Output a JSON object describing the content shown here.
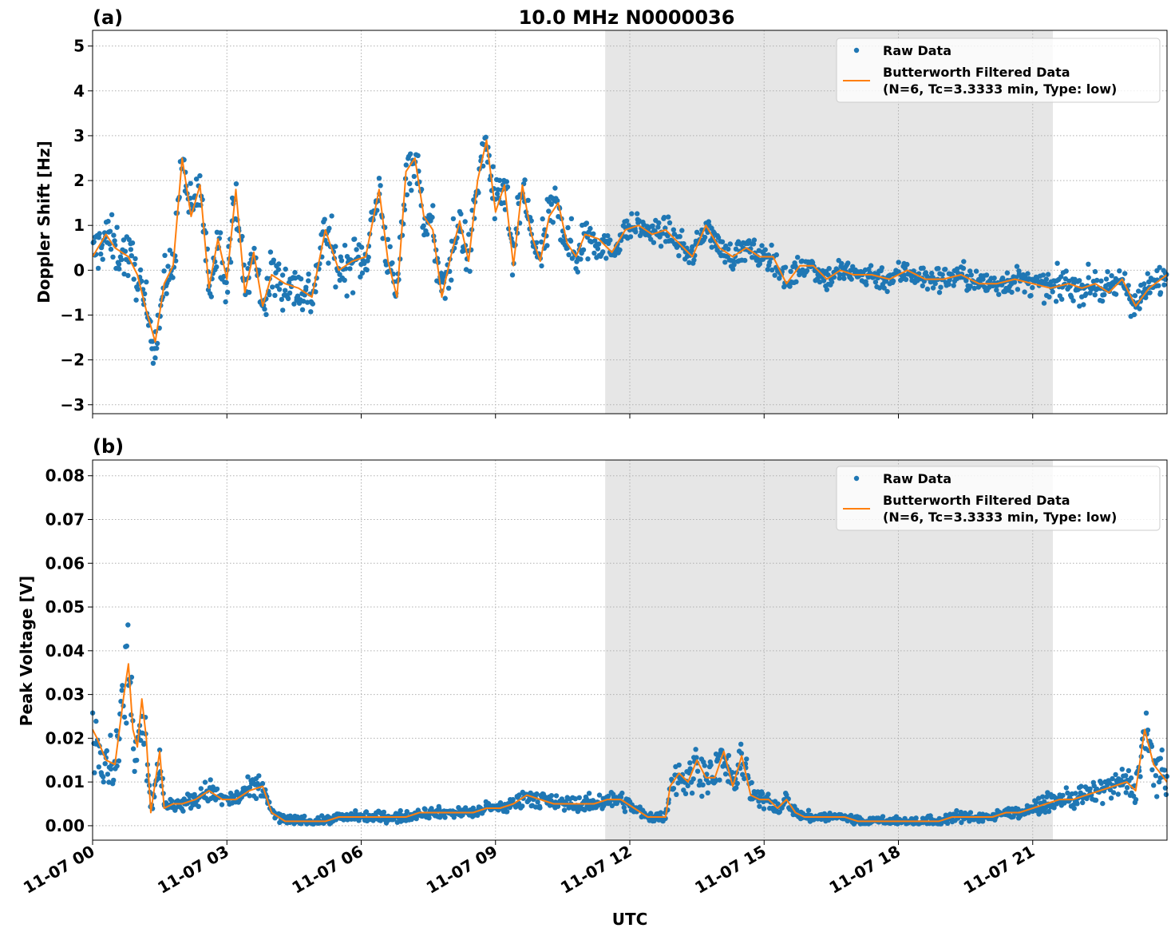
{
  "figure": {
    "title": "10.0 MHz N0000036",
    "xlabel": "UTC",
    "x_tick_labels": [
      "11-07 00",
      "11-07 03",
      "11-07 06",
      "11-07 09",
      "11-07 12",
      "11-07 15",
      "11-07 18",
      "11-07 21"
    ]
  },
  "chart_data": [
    {
      "type": "scatter",
      "panel_label": "(a)",
      "title": "10.0 MHz N0000036",
      "xlabel": "UTC",
      "ylabel": "Doppler Shift [Hz]",
      "x_unit": "hours since 11-07 00:00 UTC",
      "xlim": [
        0,
        24
      ],
      "ylim": [
        -3.2,
        5.35
      ],
      "y_ticks": [
        5,
        4,
        3,
        2,
        1,
        0,
        -1,
        -2,
        -3
      ],
      "y_tick_labels": [
        "5",
        "4",
        "3",
        "2",
        "1",
        "0",
        "−1",
        "−2",
        "−3"
      ],
      "shaded_span": [
        11.45,
        21.45
      ],
      "grid": true,
      "legend_position": "top-right",
      "legend": [
        "Raw Data",
        "Butterworth Filtered Data",
        "(N=6, Tc=3.3333 min, Type: low)"
      ],
      "series": [
        {
          "name": "Butterworth Filtered Data",
          "x": [
            0,
            0.3,
            0.5,
            0.8,
            1.0,
            1.2,
            1.4,
            1.6,
            1.8,
            2.0,
            2.2,
            2.4,
            2.6,
            2.8,
            3.0,
            3.2,
            3.4,
            3.6,
            3.8,
            4.0,
            4.3,
            4.6,
            4.9,
            5.2,
            5.5,
            5.8,
            6.1,
            6.4,
            6.6,
            6.8,
            7.0,
            7.2,
            7.4,
            7.6,
            7.8,
            8.0,
            8.2,
            8.4,
            8.6,
            8.8,
            9.0,
            9.2,
            9.4,
            9.6,
            9.8,
            10.0,
            10.2,
            10.4,
            10.6,
            10.8,
            11.0,
            11.3,
            11.6,
            11.9,
            12.2,
            12.5,
            12.8,
            13.1,
            13.4,
            13.7,
            14.0,
            14.3,
            14.6,
            14.9,
            15.2,
            15.5,
            15.8,
            16.1,
            16.4,
            16.7,
            17.0,
            17.4,
            17.8,
            18.2,
            18.6,
            19.0,
            19.4,
            19.8,
            20.2,
            20.6,
            21.0,
            21.4,
            21.8,
            22.1,
            22.4,
            22.7,
            23.0,
            23.3,
            23.6,
            24.0
          ],
          "values": [
            0.3,
            0.8,
            0.5,
            0.3,
            -0.1,
            -0.9,
            -1.6,
            -0.3,
            0.1,
            2.5,
            1.2,
            1.9,
            -0.4,
            0.7,
            -0.2,
            1.8,
            -0.5,
            0.4,
            -0.8,
            -0.1,
            -0.3,
            -0.4,
            -0.6,
            0.9,
            0.0,
            0.2,
            0.3,
            1.8,
            0.2,
            -0.6,
            2.2,
            2.5,
            1.2,
            0.9,
            -0.6,
            0.3,
            1.1,
            0.2,
            2.0,
            2.9,
            1.3,
            1.9,
            0.1,
            1.9,
            0.8,
            0.2,
            1.2,
            1.5,
            0.6,
            0.3,
            0.8,
            0.7,
            0.4,
            0.9,
            1.0,
            0.8,
            0.9,
            0.6,
            0.3,
            1.0,
            0.5,
            0.3,
            0.5,
            0.3,
            0.3,
            -0.3,
            0.1,
            0.1,
            -0.2,
            0.0,
            -0.1,
            -0.1,
            -0.2,
            0.0,
            -0.2,
            -0.2,
            -0.1,
            -0.3,
            -0.3,
            -0.2,
            -0.3,
            -0.4,
            -0.3,
            -0.4,
            -0.3,
            -0.5,
            -0.2,
            -0.8,
            -0.4,
            -0.1
          ]
        }
      ]
    },
    {
      "type": "scatter",
      "panel_label": "(b)",
      "xlabel": "UTC",
      "ylabel": "Peak Voltage [V]",
      "x_unit": "hours since 11-07 00:00 UTC",
      "xlim": [
        0,
        24
      ],
      "ylim": [
        -0.0033,
        0.0836
      ],
      "y_ticks": [
        0.08,
        0.07,
        0.06,
        0.05,
        0.04,
        0.03,
        0.02,
        0.01,
        0.0
      ],
      "y_tick_labels": [
        "0.08",
        "0.07",
        "0.06",
        "0.05",
        "0.04",
        "0.03",
        "0.02",
        "0.01",
        "0.00"
      ],
      "shaded_span": [
        11.45,
        21.45
      ],
      "grid": true,
      "legend_position": "top-right",
      "legend": [
        "Raw Data",
        "Butterworth Filtered Data",
        "(N=6, Tc=3.3333 min, Type: low)"
      ],
      "series": [
        {
          "name": "Butterworth Filtered Data",
          "x": [
            0,
            0.1,
            0.3,
            0.5,
            0.7,
            0.8,
            0.9,
            1.0,
            1.1,
            1.2,
            1.3,
            1.5,
            1.6,
            1.8,
            2.0,
            2.3,
            2.6,
            2.9,
            3.2,
            3.5,
            3.8,
            4.0,
            4.3,
            4.6,
            4.9,
            5.2,
            5.5,
            5.8,
            6.1,
            6.4,
            6.7,
            7.0,
            7.3,
            7.6,
            7.9,
            8.2,
            8.5,
            8.8,
            9.1,
            9.4,
            9.7,
            10.0,
            10.3,
            10.6,
            10.9,
            11.2,
            11.5,
            11.8,
            12.1,
            12.4,
            12.7,
            12.8,
            12.9,
            13.1,
            13.3,
            13.5,
            13.7,
            13.9,
            14.1,
            14.3,
            14.5,
            14.7,
            14.9,
            15.1,
            15.3,
            15.5,
            15.7,
            15.9,
            16.2,
            16.5,
            16.8,
            17.1,
            17.4,
            17.7,
            18.0,
            18.3,
            18.6,
            18.9,
            19.2,
            19.5,
            19.8,
            20.1,
            20.4,
            20.7,
            21.0,
            21.3,
            21.6,
            21.9,
            22.2,
            22.5,
            22.8,
            23.1,
            23.3,
            23.5,
            23.7,
            24.0
          ],
          "values": [
            0.022,
            0.02,
            0.015,
            0.014,
            0.03,
            0.037,
            0.022,
            0.018,
            0.029,
            0.02,
            0.003,
            0.017,
            0.004,
            0.005,
            0.005,
            0.006,
            0.008,
            0.006,
            0.006,
            0.008,
            0.009,
            0.003,
            0.001,
            0.001,
            0.001,
            0.001,
            0.002,
            0.002,
            0.002,
            0.002,
            0.002,
            0.002,
            0.003,
            0.003,
            0.003,
            0.003,
            0.003,
            0.004,
            0.004,
            0.005,
            0.007,
            0.006,
            0.005,
            0.005,
            0.005,
            0.005,
            0.006,
            0.006,
            0.004,
            0.002,
            0.002,
            0.002,
            0.009,
            0.012,
            0.01,
            0.015,
            0.011,
            0.011,
            0.017,
            0.009,
            0.016,
            0.007,
            0.006,
            0.006,
            0.004,
            0.006,
            0.003,
            0.002,
            0.002,
            0.002,
            0.002,
            0.001,
            0.001,
            0.001,
            0.001,
            0.001,
            0.001,
            0.001,
            0.002,
            0.002,
            0.002,
            0.002,
            0.003,
            0.003,
            0.004,
            0.005,
            0.006,
            0.006,
            0.007,
            0.008,
            0.009,
            0.01,
            0.008,
            0.022,
            0.014,
            0.01
          ]
        }
      ]
    }
  ],
  "colors": {
    "raw": "#1f77b4",
    "filtered": "#ff7f0e",
    "shade": "#e6e6e6",
    "grid": "#b0b0b0"
  }
}
